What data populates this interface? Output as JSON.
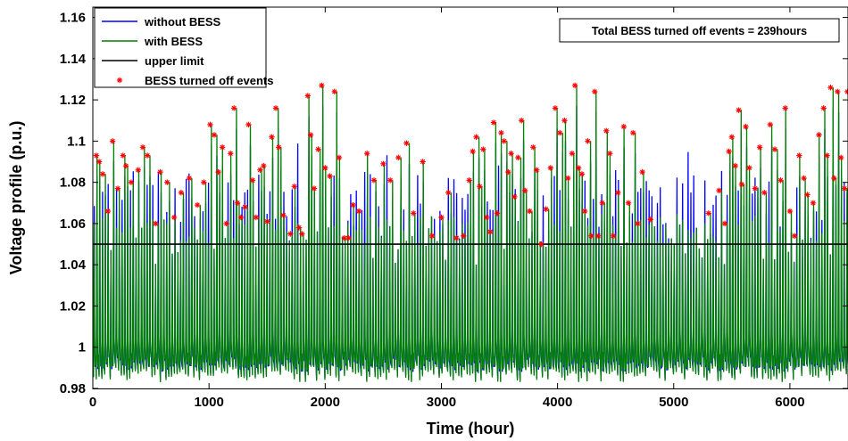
{
  "chart_data": {
    "type": "line",
    "xlabel": "Time (hour)",
    "ylabel": "Voltage profile (p.u.)",
    "xlim": [
      0,
      6500
    ],
    "ylim": [
      0.98,
      1.165
    ],
    "x_ticks": [
      0,
      1000,
      2000,
      3000,
      4000,
      5000,
      6000
    ],
    "y_ticks": [
      0.98,
      1,
      1.02,
      1.04,
      1.06,
      1.08,
      1.1,
      1.12,
      1.14,
      1.16
    ],
    "grid": false,
    "legend_position": "top-left",
    "annotation": "Total BESS turned off events = 239hours",
    "series": [
      {
        "name": "without BESS",
        "color": "#0000ff",
        "style": "line",
        "description_values": {
          "min": 0.985,
          "max": 1.11,
          "typical_low": 0.99,
          "typical_high": 1.08
        }
      },
      {
        "name": "with BESS",
        "color": "#008000",
        "style": "line",
        "description_values": {
          "min": 0.983,
          "max": 1.127,
          "typical_low": 0.99,
          "typical_high": 1.08
        }
      },
      {
        "name": "upper limit",
        "color": "#000000",
        "style": "line",
        "x": [
          0,
          6500
        ],
        "y": [
          1.05,
          1.05
        ]
      },
      {
        "name": "BESS turned off events",
        "color": "#ff0000",
        "style": "marker",
        "marker": "*",
        "count": 239
      }
    ],
    "peak_events": [
      [
        30,
        1.093
      ],
      [
        55,
        1.09
      ],
      [
        85,
        1.084
      ],
      [
        130,
        1.066
      ],
      [
        170,
        1.1
      ],
      [
        215,
        1.077
      ],
      [
        260,
        1.093
      ],
      [
        285,
        1.088
      ],
      [
        330,
        1.08
      ],
      [
        390,
        1.086
      ],
      [
        430,
        1.097
      ],
      [
        470,
        1.093
      ],
      [
        540,
        1.06
      ],
      [
        580,
        1.085
      ],
      [
        640,
        1.08
      ],
      [
        700,
        1.063
      ],
      [
        760,
        1.075
      ],
      [
        830,
        1.082
      ],
      [
        900,
        1.069
      ],
      [
        955,
        1.08
      ],
      [
        1010,
        1.108
      ],
      [
        1045,
        1.103
      ],
      [
        1080,
        1.085
      ],
      [
        1115,
        1.097
      ],
      [
        1150,
        1.06
      ],
      [
        1185,
        1.094
      ],
      [
        1215,
        1.116
      ],
      [
        1245,
        1.07
      ],
      [
        1275,
        1.063
      ],
      [
        1310,
        1.068
      ],
      [
        1340,
        1.108
      ],
      [
        1375,
        1.081
      ],
      [
        1405,
        1.063
      ],
      [
        1440,
        1.086
      ],
      [
        1470,
        1.088
      ],
      [
        1500,
        1.061
      ],
      [
        1540,
        1.102
      ],
      [
        1575,
        1.116
      ],
      [
        1600,
        1.097
      ],
      [
        1640,
        1.064
      ],
      [
        1700,
        1.055
      ],
      [
        1735,
        1.078
      ],
      [
        1775,
        1.058
      ],
      [
        1800,
        1.055
      ],
      [
        1850,
        1.122
      ],
      [
        1875,
        1.103
      ],
      [
        1905,
        1.077
      ],
      [
        1940,
        1.096
      ],
      [
        1970,
        1.127
      ],
      [
        2000,
        1.087
      ],
      [
        2040,
        1.083
      ],
      [
        2080,
        1.124
      ],
      [
        2120,
        1.092
      ],
      [
        2165,
        1.053
      ],
      [
        2200,
        1.053
      ],
      [
        2240,
        1.069
      ],
      [
        2290,
        1.066
      ],
      [
        2360,
        1.094
      ],
      [
        2420,
        1.081
      ],
      [
        2500,
        1.089
      ],
      [
        2560,
        1.081
      ],
      [
        2630,
        1.092
      ],
      [
        2700,
        1.099
      ],
      [
        2760,
        1.065
      ],
      [
        2840,
        1.09
      ],
      [
        2920,
        1.054
      ],
      [
        3000,
        1.063
      ],
      [
        3060,
        1.075
      ],
      [
        3130,
        1.053
      ],
      [
        3190,
        1.054
      ],
      [
        3240,
        1.081
      ],
      [
        3270,
        1.095
      ],
      [
        3300,
        1.102
      ],
      [
        3330,
        1.078
      ],
      [
        3360,
        1.096
      ],
      [
        3390,
        1.063
      ],
      [
        3420,
        1.056
      ],
      [
        3450,
        1.109
      ],
      [
        3480,
        1.065
      ],
      [
        3515,
        1.104
      ],
      [
        3540,
        1.1
      ],
      [
        3575,
        1.085
      ],
      [
        3600,
        1.094
      ],
      [
        3630,
        1.073
      ],
      [
        3660,
        1.092
      ],
      [
        3690,
        1.11
      ],
      [
        3720,
        1.076
      ],
      [
        3760,
        1.066
      ],
      [
        3790,
        1.097
      ],
      [
        3820,
        1.086
      ],
      [
        3860,
        1.05
      ],
      [
        3900,
        1.067
      ],
      [
        3940,
        1.087
      ],
      [
        3980,
        1.116
      ],
      [
        4020,
        1.104
      ],
      [
        4060,
        1.11
      ],
      [
        4090,
        1.082
      ],
      [
        4125,
        1.094
      ],
      [
        4150,
        1.127
      ],
      [
        4180,
        1.087
      ],
      [
        4210,
        1.084
      ],
      [
        4235,
        1.066
      ],
      [
        4260,
        1.1
      ],
      [
        4290,
        1.054
      ],
      [
        4320,
        1.124
      ],
      [
        4350,
        1.054
      ],
      [
        4385,
        1.07
      ],
      [
        4420,
        1.105
      ],
      [
        4450,
        1.094
      ],
      [
        4480,
        1.054
      ],
      [
        4520,
        1.075
      ],
      [
        4570,
        1.107
      ],
      [
        4610,
        1.07
      ],
      [
        4650,
        1.104
      ],
      [
        4690,
        1.06
      ],
      [
        4730,
        1.085
      ],
      [
        4800,
        1.062
      ],
      [
        5300,
        1.065
      ],
      [
        5390,
        1.076
      ],
      [
        5440,
        1.06
      ],
      [
        5475,
        1.095
      ],
      [
        5500,
        1.102
      ],
      [
        5530,
        1.088
      ],
      [
        5560,
        1.115
      ],
      [
        5585,
        1.079
      ],
      [
        5620,
        1.107
      ],
      [
        5650,
        1.087
      ],
      [
        5700,
        1.077
      ],
      [
        5740,
        1.097
      ],
      [
        5780,
        1.075
      ],
      [
        5830,
        1.108
      ],
      [
        5870,
        1.096
      ],
      [
        5920,
        1.081
      ],
      [
        5960,
        1.116
      ],
      [
        6000,
        1.066
      ],
      [
        6040,
        1.054
      ],
      [
        6080,
        1.093
      ],
      [
        6120,
        1.082
      ],
      [
        6150,
        1.074
      ],
      [
        6200,
        1.07
      ],
      [
        6250,
        1.103
      ],
      [
        6290,
        1.116
      ],
      [
        6320,
        1.093
      ],
      [
        6350,
        1.126
      ],
      [
        6380,
        1.082
      ],
      [
        6410,
        1.124
      ],
      [
        6440,
        1.092
      ],
      [
        6470,
        1.077
      ],
      [
        6495,
        1.124
      ]
    ]
  }
}
